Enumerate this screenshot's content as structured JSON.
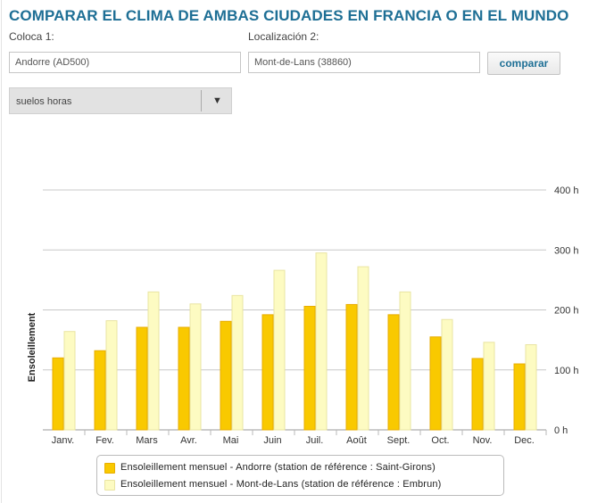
{
  "header": {
    "title": "COMPARAR EL CLIMA DE AMBAS CIUDADES EN FRANCIA O EN EL MUNDO"
  },
  "form": {
    "location1_label": "Coloca 1:",
    "location1_value": "Andorre (AD500)",
    "location2_label": "Localización 2:",
    "location2_value": "Mont-de-Lans (38860)",
    "compare_label": "comparar",
    "select_value": "suelos horas"
  },
  "colors": {
    "series1": "#f9c900",
    "series1_edge": "#e8ad00",
    "series2": "#fdfbc2",
    "series2_edge": "#e9e4a2",
    "accent": "#1e6f95"
  },
  "chart_data": {
    "type": "bar",
    "categories": [
      "Janv.",
      "Fev.",
      "Mars",
      "Avr.",
      "Mai",
      "Juin",
      "Juil.",
      "Août",
      "Sept.",
      "Oct.",
      "Nov.",
      "Dec."
    ],
    "series": [
      {
        "name": "Ensoleillement mensuel - Andorre (station de référence : Saint-Girons)",
        "values": [
          120,
          132,
          171,
          171,
          181,
          192,
          206,
          209,
          192,
          155,
          119,
          110
        ]
      },
      {
        "name": "Ensoleillement mensuel - Mont-de-Lans (station de référence : Embrun)",
        "values": [
          164,
          182,
          230,
          210,
          224,
          266,
          295,
          272,
          230,
          184,
          146,
          142
        ]
      }
    ],
    "ylabel": "Ensoleillement",
    "ylim": [
      0,
      400
    ],
    "yticks": [
      {
        "value": 0,
        "label": "0 h"
      },
      {
        "value": 100,
        "label": "100 h"
      },
      {
        "value": 200,
        "label": "200 h"
      },
      {
        "value": 300,
        "label": "300 h"
      },
      {
        "value": 400,
        "label": "400 h"
      }
    ],
    "grid": true,
    "legend_position": "bottom"
  }
}
